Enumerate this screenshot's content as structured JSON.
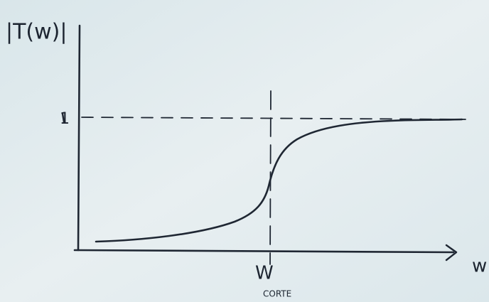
{
  "y_axis_label": "|T(w)|",
  "x_axis_label": "w",
  "level_label": "1",
  "cutoff_label": "W",
  "cutoff_sublabel": "CORTE"
}
